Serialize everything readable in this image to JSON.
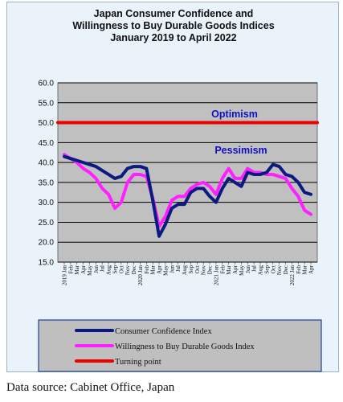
{
  "chart_data": {
    "type": "line",
    "title": [
      "Japan Consumer Confidence and",
      "Willingness to Buy Durable Goods Indices",
      "January 2019 to April 2022"
    ],
    "xlabel": "",
    "ylabel": "",
    "ylim": [
      15,
      60
    ],
    "yticks": [
      "60.0",
      "55.0",
      "50.0",
      "45.0",
      "40.0",
      "35.0",
      "30.0",
      "25.0",
      "20.0",
      "15.0"
    ],
    "grid": "horizontal",
    "x": [
      "2019 Jan",
      "Feb",
      "Mar",
      "Apr",
      "May",
      "Jun",
      "Jul",
      "Aug",
      "Sep",
      "Oct",
      "Nov",
      "Dec",
      "2020 Jan",
      "Feb",
      "Mar",
      "Apr",
      "May",
      "Jun",
      "Jul",
      "Aug",
      "Sep",
      "Oct",
      "Nov",
      "Dec",
      "2021 Jan",
      "Feb",
      "Mar",
      "Apr",
      "May",
      "Jun",
      "Jul",
      "Aug",
      "Sep",
      "Oct",
      "Nov",
      "Dec",
      "2022 Jan",
      "Feb",
      "Mar",
      "Apr"
    ],
    "series": [
      {
        "name": "Consumer Confidence Index",
        "color": "#0a1a80",
        "values": [
          41.5,
          41.0,
          40.5,
          40.0,
          39.5,
          39.0,
          38.0,
          37.0,
          36.0,
          36.5,
          38.5,
          39.0,
          39.0,
          38.5,
          30.5,
          21.5,
          24.5,
          28.5,
          29.5,
          29.5,
          32.5,
          33.5,
          33.5,
          31.5,
          30.0,
          33.5,
          36.0,
          35.0,
          34.0,
          37.5,
          37.0,
          37.0,
          37.5,
          39.5,
          39.0,
          37.0,
          36.5,
          35.0,
          32.5,
          32.0
        ]
      },
      {
        "name": "Willingness to Buy Durable Goods Index",
        "color": "#ff20ff",
        "values": [
          42.0,
          41.0,
          40.0,
          38.5,
          37.5,
          36.0,
          33.5,
          32.0,
          28.5,
          30.0,
          35.0,
          37.0,
          37.0,
          36.5,
          31.0,
          24.0,
          26.5,
          30.5,
          31.5,
          31.5,
          33.5,
          34.5,
          35.0,
          34.0,
          32.0,
          36.0,
          38.5,
          36.0,
          36.0,
          38.5,
          37.5,
          37.5,
          37.0,
          37.0,
          36.5,
          36.0,
          33.5,
          31.5,
          28.0,
          27.0
        ]
      },
      {
        "name": "Turning point",
        "color": "#ee0000",
        "values": [
          50,
          50,
          50,
          50,
          50,
          50,
          50,
          50,
          50,
          50,
          50,
          50,
          50,
          50,
          50,
          50,
          50,
          50,
          50,
          50,
          50,
          50,
          50,
          50,
          50,
          50,
          50,
          50,
          50,
          50,
          50,
          50,
          50,
          50,
          50,
          50,
          50,
          50,
          50,
          50
        ]
      }
    ],
    "annotations": [
      "Optimism",
      "Pessimism"
    ],
    "legend": "bottom"
  },
  "source": "Data source: Cabinet Office, Japan"
}
